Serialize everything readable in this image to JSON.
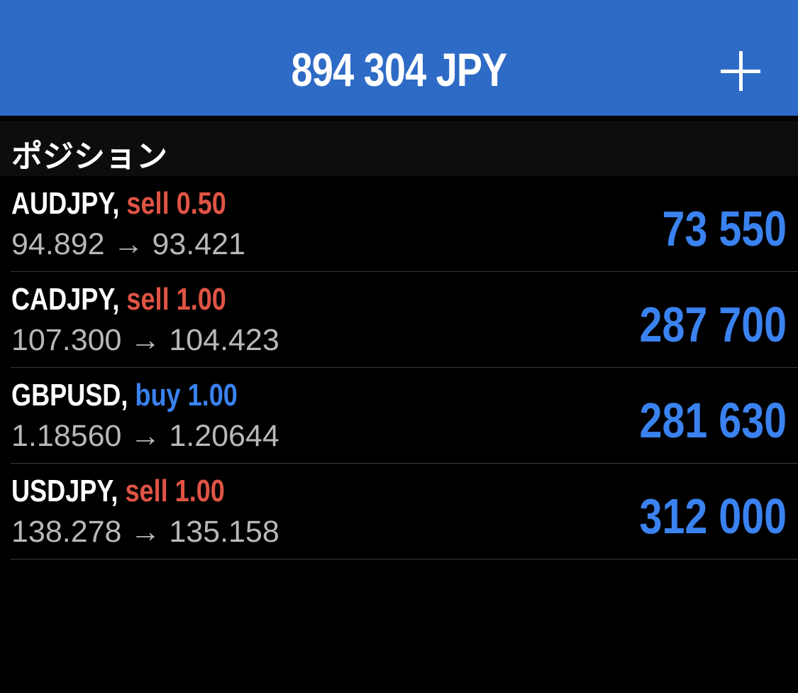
{
  "header": {
    "title": "894 304 JPY",
    "add_icon": "plus-icon"
  },
  "section": {
    "title": "ポジション"
  },
  "colors": {
    "header_bg": "#2e6bc6",
    "sell": "#e05445",
    "buy": "#3a82f0",
    "profit": "#3a82f0"
  },
  "positions": [
    {
      "symbol": "AUDJPY,",
      "action": "sell 0.50",
      "type": "sell",
      "prices": "94.892 → 93.421",
      "profit": "73 550"
    },
    {
      "symbol": "CADJPY,",
      "action": "sell 1.00",
      "type": "sell",
      "prices": "107.300 → 104.423",
      "profit": "287 700"
    },
    {
      "symbol": "GBPUSD,",
      "action": "buy 1.00",
      "type": "buy",
      "prices": "1.18560 → 1.20644",
      "profit": "281 630"
    },
    {
      "symbol": "USDJPY,",
      "action": "sell 1.00",
      "type": "sell",
      "prices": "138.278 → 135.158",
      "profit": "312 000"
    }
  ]
}
